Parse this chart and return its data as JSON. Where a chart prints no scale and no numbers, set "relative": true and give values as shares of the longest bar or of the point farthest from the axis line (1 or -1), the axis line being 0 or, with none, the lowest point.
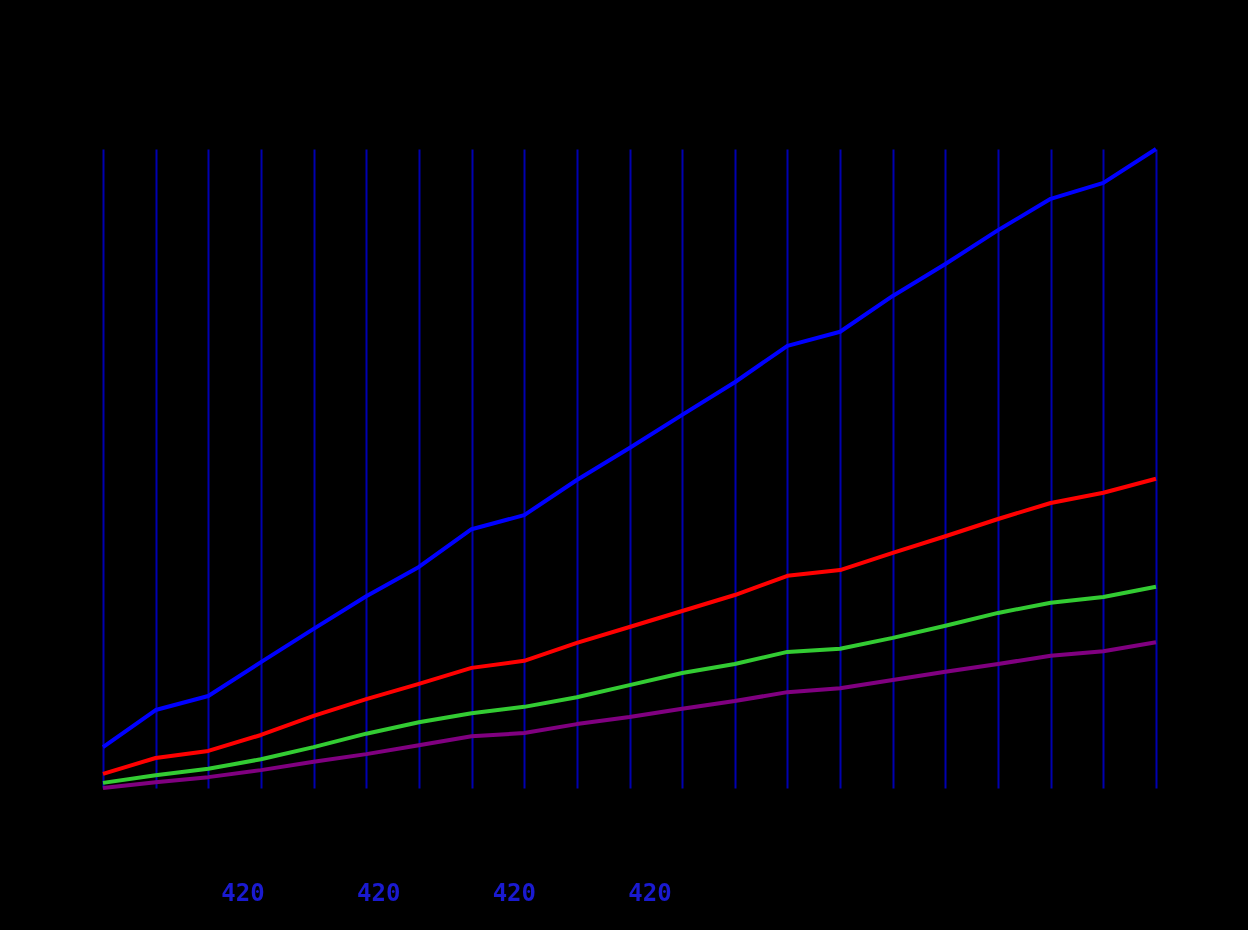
{
  "chart_data": {
    "type": "line",
    "relative": true,
    "grid": "x",
    "legend": false,
    "marker": "none",
    "line_style": "solid",
    "categories": [
      null,
      null,
      null,
      null,
      null,
      null,
      null,
      null,
      null,
      null,
      null,
      null,
      null,
      null,
      null,
      null,
      null,
      null,
      null,
      null,
      null
    ],
    "series": [
      {
        "color": "#0000ff",
        "values": [
          0.064,
          0.122,
          0.144,
          0.197,
          0.249,
          0.3,
          0.346,
          0.405,
          0.427,
          0.482,
          0.532,
          0.584,
          0.635,
          0.692,
          0.714,
          0.77,
          0.82,
          0.873,
          0.922,
          0.947,
          1
        ]
      },
      {
        "color": "#ff0000",
        "values": [
          0.022,
          0.047,
          0.058,
          0.083,
          0.113,
          0.139,
          0.163,
          0.188,
          0.199,
          0.227,
          0.252,
          0.277,
          0.302,
          0.332,
          0.341,
          0.368,
          0.394,
          0.421,
          0.446,
          0.462,
          0.484
        ]
      },
      {
        "color": "#33cc33",
        "values": [
          0.008,
          0.02,
          0.03,
          0.045,
          0.064,
          0.085,
          0.103,
          0.117,
          0.127,
          0.142,
          0.161,
          0.18,
          0.194,
          0.213,
          0.218,
          0.235,
          0.254,
          0.274,
          0.29,
          0.299,
          0.315
        ]
      },
      {
        "color": "#800080",
        "values": [
          0,
          0.009,
          0.017,
          0.028,
          0.041,
          0.053,
          0.067,
          0.081,
          0.086,
          0.1,
          0.111,
          0.124,
          0.136,
          0.15,
          0.156,
          0.169,
          0.182,
          0.194,
          0.207,
          0.214,
          0.228
        ]
      }
    ],
    "annotations": [
      "420",
      "420",
      "420",
      "420"
    ]
  }
}
